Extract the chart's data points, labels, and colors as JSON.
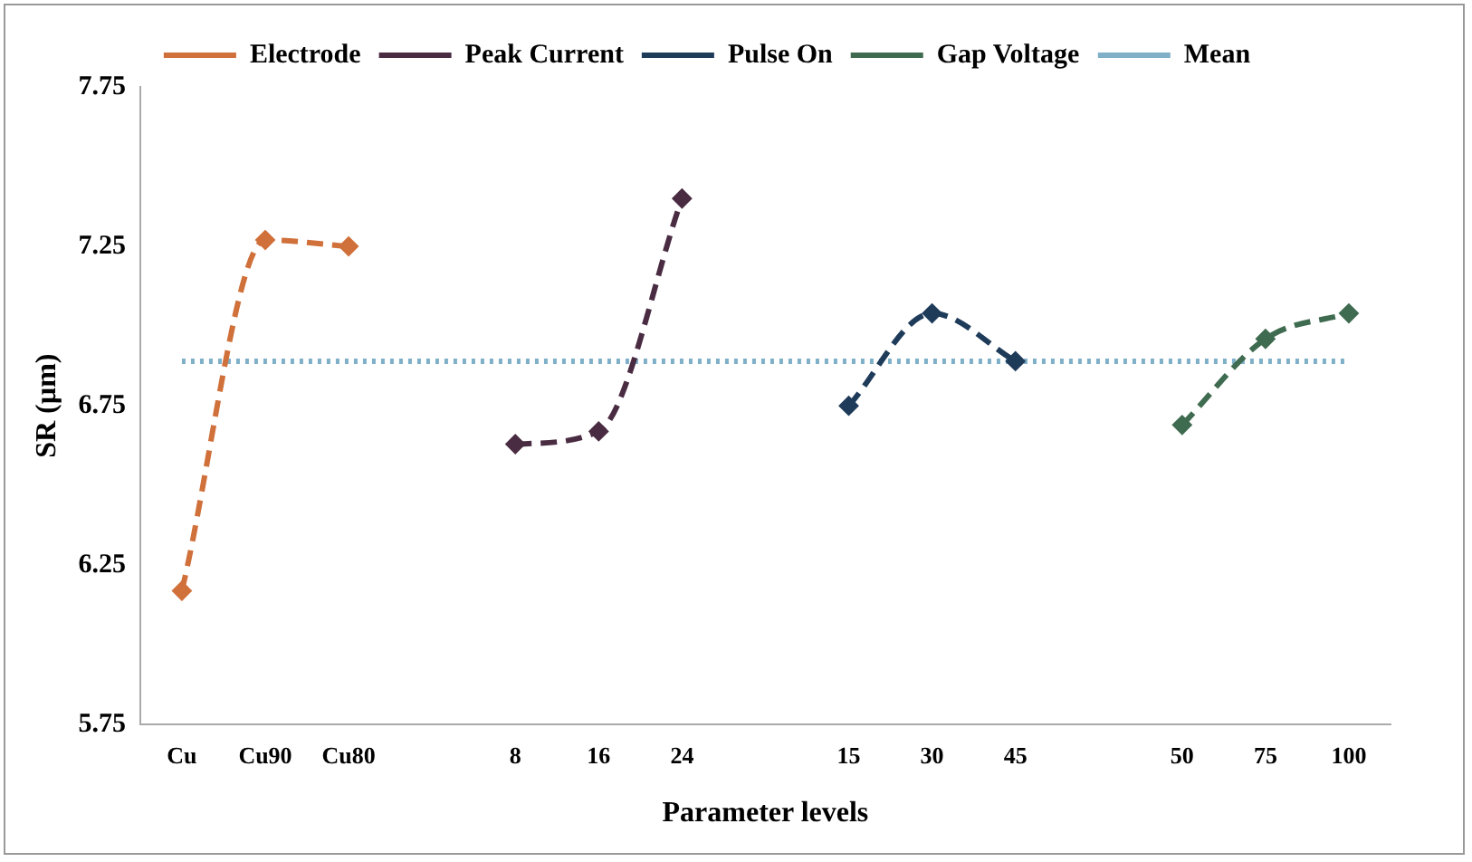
{
  "chart_data": {
    "type": "line",
    "xlabel": "Parameter levels",
    "ylabel": "SR (µm)",
    "categories": [
      "Cu",
      "Cu90",
      "Cu80",
      null,
      "8",
      "16",
      "24",
      null,
      "15",
      "30",
      "45",
      null,
      "50",
      "75",
      "100"
    ],
    "ylim": [
      5.75,
      7.75
    ],
    "yticks": [
      5.75,
      6.25,
      6.75,
      7.25,
      7.75
    ],
    "grid": false,
    "legend": "top",
    "series": [
      {
        "name": "Electrode",
        "color": "#d0703a",
        "marker": "diamond",
        "line_style": "dashed",
        "values": [
          6.17,
          7.27,
          7.25,
          null,
          null,
          null,
          null,
          null,
          null,
          null,
          null,
          null,
          null,
          null,
          null
        ]
      },
      {
        "name": "Peak Current",
        "color": "#4a2c42",
        "marker": "diamond",
        "line_style": "dashed",
        "values": [
          null,
          null,
          null,
          null,
          6.63,
          6.67,
          7.4,
          null,
          null,
          null,
          null,
          null,
          null,
          null,
          null
        ]
      },
      {
        "name": "Pulse On",
        "color": "#1f3b5a",
        "marker": "diamond",
        "line_style": "dashed",
        "values": [
          null,
          null,
          null,
          null,
          null,
          null,
          null,
          null,
          6.75,
          7.04,
          6.89,
          null,
          null,
          null,
          null
        ]
      },
      {
        "name": "Gap Voltage",
        "color": "#3f6b50",
        "marker": "diamond",
        "line_style": "dashed",
        "values": [
          null,
          null,
          null,
          null,
          null,
          null,
          null,
          null,
          null,
          null,
          null,
          null,
          6.69,
          6.96,
          7.04
        ]
      },
      {
        "name": "Mean",
        "color": "#7fb0c8",
        "marker": "none",
        "line_style": "dotted",
        "values": [
          6.89,
          6.89,
          6.89,
          6.89,
          6.89,
          6.89,
          6.89,
          6.89,
          6.89,
          6.89,
          6.89,
          6.89,
          6.89,
          6.89,
          6.89
        ]
      }
    ]
  }
}
